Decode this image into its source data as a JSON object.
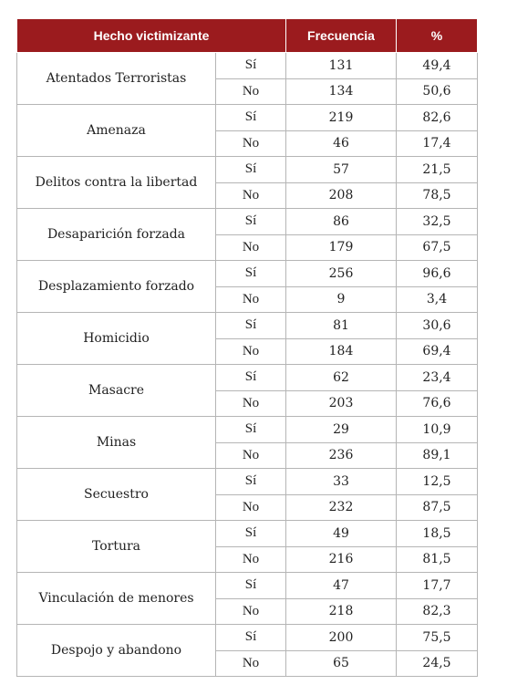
{
  "headers": {
    "category": "Hecho victimizante",
    "frequency": "Frecuencia",
    "percent": "%"
  },
  "rows": [
    {
      "category": "Atentados Terroristas",
      "yes_label": "Sí",
      "yes_freq": "131",
      "yes_pct": "49,4",
      "no_label": "No",
      "no_freq": "134",
      "no_pct": "50,6"
    },
    {
      "category": "Amenaza",
      "yes_label": "Sí",
      "yes_freq": "219",
      "yes_pct": "82,6",
      "no_label": "No",
      "no_freq": "46",
      "no_pct": "17,4"
    },
    {
      "category": "Delitos contra la libertad",
      "yes_label": "Sí",
      "yes_freq": "57",
      "yes_pct": "21,5",
      "no_label": "No",
      "no_freq": "208",
      "no_pct": "78,5"
    },
    {
      "category": "Desaparición forzada",
      "yes_label": "Sí",
      "yes_freq": "86",
      "yes_pct": "32,5",
      "no_label": "No",
      "no_freq": "179",
      "no_pct": "67,5"
    },
    {
      "category": "Desplazamiento forzado",
      "yes_label": "Sí",
      "yes_freq": "256",
      "yes_pct": "96,6",
      "no_label": "No",
      "no_freq": "9",
      "no_pct": "3,4"
    },
    {
      "category": "Homicidio",
      "yes_label": "Sí",
      "yes_freq": "81",
      "yes_pct": "30,6",
      "no_label": "No",
      "no_freq": "184",
      "no_pct": "69,4"
    },
    {
      "category": "Masacre",
      "yes_label": "Sí",
      "yes_freq": "62",
      "yes_pct": "23,4",
      "no_label": "No",
      "no_freq": "203",
      "no_pct": "76,6"
    },
    {
      "category": "Minas",
      "yes_label": "Sí",
      "yes_freq": "29",
      "yes_pct": "10,9",
      "no_label": "No",
      "no_freq": "236",
      "no_pct": "89,1"
    },
    {
      "category": "Secuestro",
      "yes_label": "Sí",
      "yes_freq": "33",
      "yes_pct": "12,5",
      "no_label": "No",
      "no_freq": "232",
      "no_pct": "87,5"
    },
    {
      "category": "Tortura",
      "yes_label": "Sí",
      "yes_freq": "49",
      "yes_pct": "18,5",
      "no_label": "No",
      "no_freq": "216",
      "no_pct": "81,5"
    },
    {
      "category": "Vinculación de menores",
      "yes_label": "Sí",
      "yes_freq": "47",
      "yes_pct": "17,7",
      "no_label": "No",
      "no_freq": "218",
      "no_pct": "82,3"
    },
    {
      "category": "Despojo y abandono",
      "yes_label": "Sí",
      "yes_freq": "200",
      "yes_pct": "75,5",
      "no_label": "No",
      "no_freq": "65",
      "no_pct": "24,5"
    }
  ]
}
